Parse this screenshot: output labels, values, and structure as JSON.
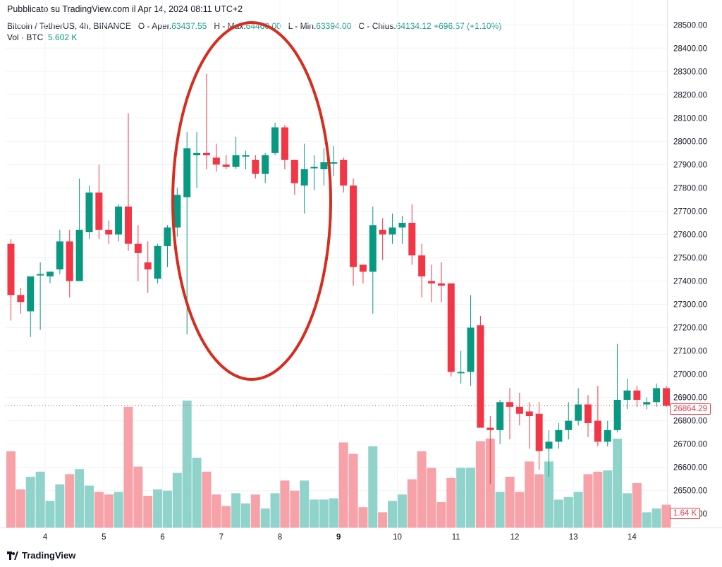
{
  "header": {
    "published": "Pubblicato su TradingView.com il Apr 14, 2024 08:11 UTC+2",
    "symbol": "Bitcoin / TetherUS, 4h, BINANCE",
    "open_label": "O - Aper.",
    "open_value": "63437.55",
    "high_label": "H - Max.",
    "high_value": "64460.00",
    "low_label": "L - Min.",
    "low_value": "63394.00",
    "close_label": "C - Chius.",
    "close_value": "64134.12",
    "change": "+696.57 (+1.10%)",
    "vol_label": "Vol · BTC",
    "vol_value": "5.602 K"
  },
  "last_price_tag": "26864.29",
  "last_volume_tag": "1.64 K",
  "footer": {
    "brand": "TradingView"
  },
  "colors": {
    "up": "#089981",
    "down": "#f23645",
    "up_vol": "#8fd3cb",
    "down_vol": "#f7a1a8",
    "ellipse": "#d62d1e"
  },
  "chart_data": {
    "type": "candlestick",
    "ylim": [
      26375,
      28525
    ],
    "yticks": [
      28500,
      28400,
      28300,
      28200,
      28100,
      28000,
      27900,
      27800,
      27700,
      27600,
      27500,
      27400,
      27300,
      27200,
      27100,
      27000,
      26900,
      26800,
      26700,
      26600,
      26500,
      26400
    ],
    "ytick_labels": [
      "28500.00",
      "28400.00",
      "28300.00",
      "28200.00",
      "28100.00",
      "28000.00",
      "27900.00",
      "27800.00",
      "27700.00",
      "27600.00",
      "27500.00",
      "27400.00",
      "27300.00",
      "27200.00",
      "27100.00",
      "27000.00",
      "26900.00",
      "26800.00",
      "26700.00",
      "26600.00",
      "26500.00",
      "26400.00"
    ],
    "xtick_labels": [
      "4",
      "5",
      "6",
      "7",
      "8",
      "9",
      "10",
      "11",
      "12",
      "13",
      "14"
    ],
    "xtick_bold": [
      false,
      false,
      false,
      false,
      false,
      true,
      false,
      false,
      false,
      false,
      false
    ],
    "xtick_candle_index": [
      3.5,
      9.5,
      15.5,
      21.5,
      27.5,
      33.5,
      39.5,
      45.5,
      51.5,
      57.5,
      63.5
    ],
    "candles": [
      [
        27560,
        27580,
        27230,
        27340,
        0.6
      ],
      [
        27340,
        27370,
        27260,
        27310,
        0.3
      ],
      [
        27270,
        27420,
        27160,
        27420,
        0.4
      ],
      [
        27430,
        27480,
        27190,
        27430,
        0.44
      ],
      [
        27420,
        27440,
        27390,
        27440,
        0.21
      ],
      [
        27450,
        27620,
        27430,
        27570,
        0.34
      ],
      [
        27570,
        27620,
        27330,
        27400,
        0.42
      ],
      [
        27400,
        27840,
        27400,
        27620,
        0.46
      ],
      [
        27610,
        27810,
        27580,
        27780,
        0.33
      ],
      [
        27780,
        27900,
        27580,
        27620,
        0.28
      ],
      [
        27620,
        27660,
        27560,
        27600,
        0.26
      ],
      [
        27600,
        27730,
        27570,
        27720,
        0.28
      ],
      [
        27720,
        28120,
        27530,
        27560,
        0.95
      ],
      [
        27560,
        27640,
        27400,
        27520,
        0.48
      ],
      [
        27480,
        27570,
        27350,
        27450,
        0.25
      ],
      [
        27410,
        27560,
        27390,
        27550,
        0.3
      ],
      [
        27550,
        27640,
        27460,
        27630,
        0.29
      ],
      [
        27630,
        27800,
        27590,
        27770,
        0.43
      ],
      [
        27760,
        28040,
        27170,
        27970,
        1.0
      ],
      [
        27940,
        28040,
        27800,
        27950,
        0.55
      ],
      [
        27950,
        28290,
        27880,
        27940,
        0.44
      ],
      [
        27930,
        27990,
        27870,
        27900,
        0.26
      ],
      [
        27900,
        27940,
        27880,
        27890,
        0.17
      ],
      [
        27890,
        28020,
        27880,
        27940,
        0.27
      ],
      [
        27940,
        27960,
        27880,
        27940,
        0.19
      ],
      [
        27920,
        27940,
        27840,
        27860,
        0.26
      ],
      [
        27860,
        27950,
        27820,
        27940,
        0.15
      ],
      [
        27950,
        28080,
        27940,
        28060,
        0.27
      ],
      [
        28060,
        28070,
        27880,
        27920,
        0.37
      ],
      [
        27920,
        27920,
        27770,
        27820,
        0.29
      ],
      [
        27810,
        27990,
        27690,
        27880,
        0.37
      ],
      [
        27890,
        27940,
        27790,
        27890,
        0.22
      ],
      [
        27880,
        27970,
        27810,
        27910,
        0.22
      ],
      [
        27910,
        27980,
        27850,
        27910,
        0.23
      ],
      [
        27920,
        27930,
        27780,
        27810,
        0.67
      ],
      [
        27810,
        27840,
        27380,
        27460,
        0.58
      ],
      [
        27470,
        27470,
        27390,
        27440,
        0.16
      ],
      [
        27440,
        27720,
        27260,
        27640,
        0.64
      ],
      [
        27620,
        27670,
        27490,
        27600,
        0.12
      ],
      [
        27600,
        27690,
        27560,
        27630,
        0.21
      ],
      [
        27630,
        27680,
        27560,
        27650,
        0.26
      ],
      [
        27650,
        27730,
        27470,
        27510,
        0.38
      ],
      [
        27510,
        27560,
        27330,
        27420,
        0.6
      ],
      [
        27400,
        27470,
        27310,
        27390,
        0.47
      ],
      [
        27390,
        27480,
        27310,
        27380,
        0.2
      ],
      [
        27390,
        27390,
        26990,
        27010,
        0.39
      ],
      [
        27010,
        27100,
        26960,
        27010,
        0.47
      ],
      [
        27010,
        27340,
        26950,
        27200,
        0.47
      ],
      [
        27210,
        27250,
        26790,
        26770,
        0.68
      ],
      [
        26770,
        26820,
        26530,
        26760,
        0.7
      ],
      [
        26760,
        26890,
        26700,
        26880,
        0.28
      ],
      [
        26880,
        26940,
        26720,
        26860,
        0.4
      ],
      [
        26860,
        26920,
        26780,
        26830,
        0.28
      ],
      [
        26840,
        26880,
        26680,
        26820,
        0.52
      ],
      [
        26830,
        26880,
        26590,
        26670,
        0.42
      ],
      [
        26680,
        26760,
        26560,
        26710,
        0.52
      ],
      [
        26710,
        26790,
        26680,
        26760,
        0.22
      ],
      [
        26760,
        26880,
        26720,
        26800,
        0.24
      ],
      [
        26800,
        26940,
        26780,
        26870,
        0.28
      ],
      [
        26870,
        26910,
        26730,
        26790,
        0.42
      ],
      [
        26800,
        26950,
        26690,
        26710,
        0.44
      ],
      [
        26710,
        26800,
        26690,
        26760,
        0.45
      ],
      [
        26760,
        27130,
        26750,
        26890,
        0.7
      ],
      [
        26890,
        26980,
        26850,
        26930,
        0.27
      ],
      [
        26930,
        26950,
        26860,
        26890,
        0.35
      ],
      [
        26870,
        26900,
        26850,
        26880,
        0.12
      ],
      [
        26880,
        26960,
        26860,
        26940,
        0.15
      ],
      [
        26940,
        26950,
        26860,
        26864.29,
        0.18
      ]
    ]
  }
}
